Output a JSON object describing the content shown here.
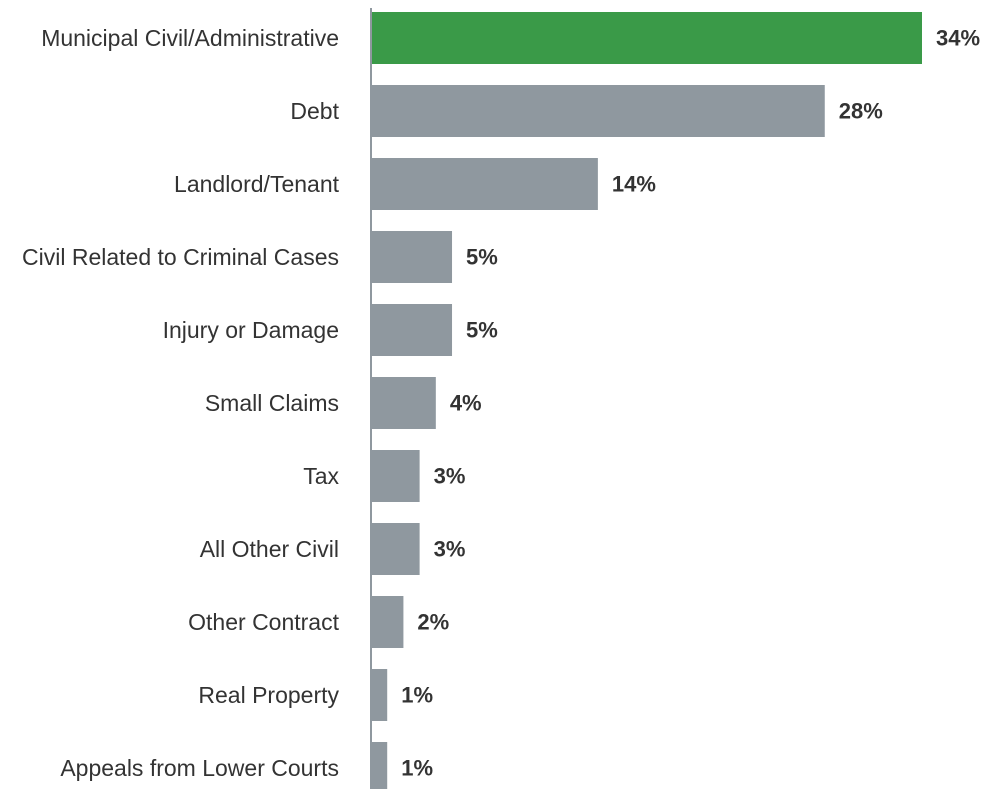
{
  "chart_data": {
    "type": "bar",
    "orientation": "horizontal",
    "categories": [
      "Municipal Civil/Administrative",
      "Debt",
      "Landlord/Tenant",
      "Civil Related to Criminal Cases",
      "Injury or Damage",
      "Small Claims",
      "Tax",
      "All Other Civil",
      "Other Contract",
      "Real Property",
      "Appeals from Lower Courts"
    ],
    "values": [
      34,
      28,
      14,
      5,
      5,
      4,
      3,
      3,
      2,
      1,
      1
    ],
    "value_labels": [
      "34%",
      "28%",
      "14%",
      "5%",
      "5%",
      "4%",
      "3%",
      "3%",
      "2%",
      "1%",
      "1%"
    ],
    "highlight_index": 0,
    "colors": {
      "highlight": "#3a9a48",
      "bar": "#8f989f",
      "axis": "#8f989f",
      "text": "#333333"
    },
    "title": "",
    "xlabel": "",
    "ylabel": "",
    "xlim": [
      0,
      34
    ],
    "grid": false,
    "legend": "none"
  }
}
